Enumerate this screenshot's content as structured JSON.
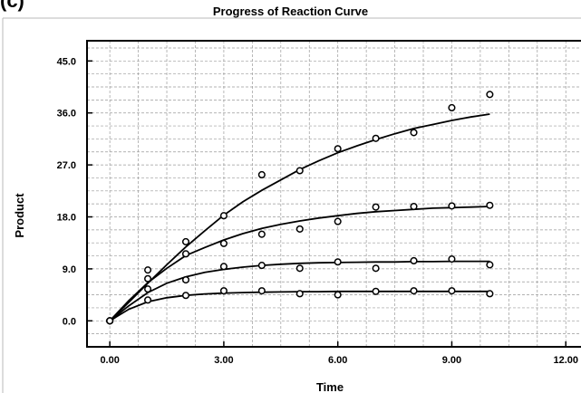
{
  "panel_label": "(c)",
  "chart_data": {
    "type": "scatter",
    "title": "Progress of Reaction Curve",
    "xlabel": "Time",
    "ylabel": "Product",
    "xlim": [
      -0.6,
      12.4
    ],
    "ylim": [
      -4.5,
      48.5
    ],
    "x_ticks": [
      0,
      3,
      6,
      9,
      12
    ],
    "x_tick_labels": [
      "0.00",
      "3.00",
      "6.00",
      "9.00",
      "12.00"
    ],
    "y_ticks": [
      0,
      9,
      18,
      27,
      36,
      45
    ],
    "y_tick_labels": [
      "0.0",
      "9.0",
      "18.0",
      "27.0",
      "36.0",
      "45.0"
    ],
    "grid": true,
    "legend": "none",
    "series": [
      {
        "x": [
          0,
          1,
          2,
          3,
          4,
          5,
          6,
          7,
          8,
          9,
          10
        ],
        "y": [
          0,
          8.8,
          13.7,
          18.2,
          25.3,
          26.0,
          29.8,
          31.6,
          32.6,
          36.9,
          39.2
        ]
      },
      {
        "x": [
          0,
          1,
          2,
          3,
          4,
          5,
          6,
          7,
          8,
          9,
          10
        ],
        "y": [
          0,
          7.3,
          11.6,
          13.4,
          15.0,
          15.9,
          17.2,
          19.7,
          19.8,
          19.9,
          20.0
        ]
      },
      {
        "x": [
          0,
          1,
          2,
          3,
          4,
          5,
          6,
          7,
          8,
          9,
          10
        ],
        "y": [
          0,
          5.5,
          7.1,
          9.4,
          9.6,
          9.1,
          10.2,
          9.1,
          10.4,
          10.7,
          9.7
        ]
      },
      {
        "x": [
          0,
          1,
          2,
          3,
          4,
          5,
          6,
          7,
          8,
          9,
          10
        ],
        "y": [
          0,
          3.6,
          4.4,
          5.2,
          5.2,
          4.7,
          4.5,
          5.1,
          5.2,
          5.2,
          4.7
        ]
      }
    ],
    "fit_curves": [
      {
        "x": [
          0,
          0.5,
          1,
          1.5,
          2,
          2.5,
          3,
          3.5,
          4,
          4.5,
          5,
          5.5,
          6,
          6.5,
          7,
          7.5,
          8,
          8.5,
          9,
          9.5,
          10
        ],
        "y": [
          0,
          3.2,
          6.5,
          9.7,
          12.8,
          15.6,
          18.3,
          20.6,
          22.6,
          24.4,
          26.2,
          27.7,
          29.1,
          30.3,
          31.4,
          32.4,
          33.3,
          34.0,
          34.7,
          35.3,
          35.8
        ]
      },
      {
        "x": [
          0,
          0.5,
          1,
          1.5,
          2,
          2.5,
          3,
          3.5,
          4,
          4.5,
          5,
          5.5,
          6,
          6.5,
          7,
          7.5,
          8,
          8.5,
          9,
          9.5,
          10
        ],
        "y": [
          0,
          3.5,
          6.6,
          9.1,
          11.3,
          12.7,
          14.0,
          15.1,
          16.0,
          16.7,
          17.3,
          17.8,
          18.2,
          18.6,
          18.9,
          19.1,
          19.3,
          19.5,
          19.6,
          19.7,
          19.8
        ]
      },
      {
        "x": [
          0,
          0.5,
          1,
          1.5,
          2,
          2.5,
          3,
          3.5,
          4,
          4.5,
          5,
          5.5,
          6,
          6.5,
          7,
          7.5,
          8,
          8.5,
          9,
          9.5,
          10
        ],
        "y": [
          0,
          2.6,
          4.9,
          6.5,
          7.6,
          8.4,
          8.9,
          9.3,
          9.6,
          9.8,
          9.95,
          10.05,
          10.1,
          10.15,
          10.2,
          10.2,
          10.25,
          10.25,
          10.3,
          10.3,
          10.3
        ]
      },
      {
        "x": [
          0,
          0.5,
          1,
          1.5,
          2,
          2.5,
          3,
          3.5,
          4,
          4.5,
          5,
          5.5,
          6,
          6.5,
          7,
          7.5,
          8,
          8.5,
          9,
          9.5,
          10
        ],
        "y": [
          0,
          2.0,
          3.3,
          4.0,
          4.4,
          4.65,
          4.8,
          4.9,
          4.95,
          5.0,
          5.05,
          5.05,
          5.1,
          5.1,
          5.1,
          5.1,
          5.1,
          5.1,
          5.1,
          5.1,
          5.1
        ]
      }
    ]
  }
}
